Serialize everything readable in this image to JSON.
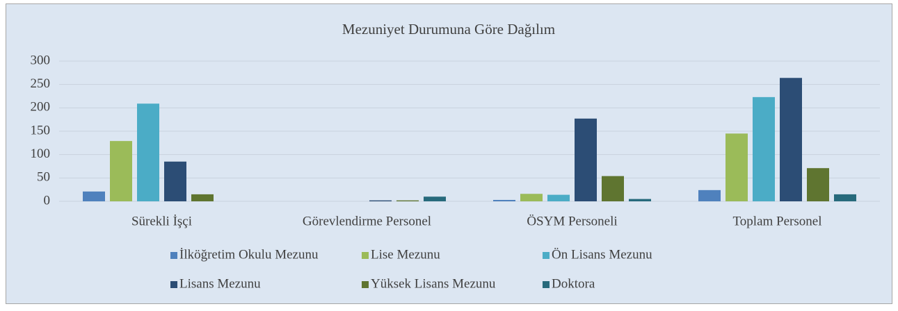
{
  "chart_data": {
    "type": "bar",
    "title": "Mezuniyet Durumuna Göre Dağılım",
    "categories": [
      "Sürekli İşçi",
      "Görevlendirme Personel",
      "ÖSYM Personeli",
      "Toplam Personel"
    ],
    "series": [
      {
        "name": "İlköğretim Okulu Mezunu",
        "color": "#4f81bd",
        "values": [
          21,
          0,
          3,
          24
        ]
      },
      {
        "name": "Lise Mezunu",
        "color": "#9bbb59",
        "values": [
          129,
          0,
          16,
          145
        ]
      },
      {
        "name": "Ön Lisans Mezunu",
        "color": "#4bacc6",
        "values": [
          209,
          0,
          14,
          223
        ]
      },
      {
        "name": "Lisans Mezunu",
        "color": "#2c4d75",
        "values": [
          85,
          2,
          177,
          264
        ]
      },
      {
        "name": "Yüksek Lisans Mezunu",
        "color": "#5f7530",
        "values": [
          15,
          2,
          54,
          71
        ]
      },
      {
        "name": "Doktora",
        "color": "#276a7c",
        "values": [
          0,
          10,
          5,
          15
        ]
      }
    ],
    "ylim": [
      0,
      300
    ],
    "yticks": [
      0,
      50,
      100,
      150,
      200,
      250,
      300
    ],
    "grid": true,
    "legend": "bottom"
  }
}
